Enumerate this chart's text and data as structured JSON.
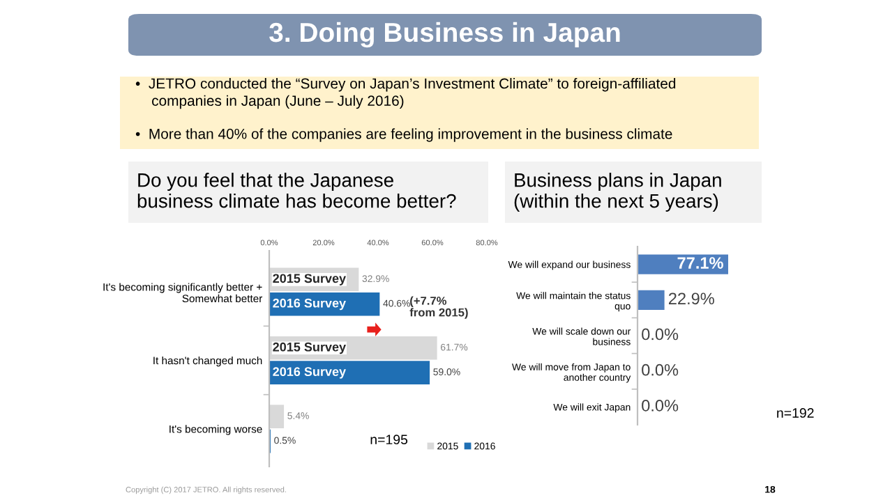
{
  "chart_data": [
    {
      "type": "other",
      "title": "3. Doing Business in Japan",
      "annotations": [
        "•  JETRO conducted the “Survey on Japan’s Investment Climate” to foreign-affiliated\n    companies in Japan (June – July 2016)",
        "•  More than 40% of the companies are feeling improvement in the business climate",
        "Copyright (C) 2017 JETRO. All rights reserved.",
        "18"
      ]
    },
    {
      "type": "bar",
      "orientation": "horizontal",
      "title": "Do you feel that the Japanese\nbusiness climate has become better?",
      "categories": [
        "It's becoming significantly better +\nSomewhat better",
        "It hasn't changed much",
        "It's becoming worse"
      ],
      "series": [
        {
          "name": "2015",
          "color": "#d9d9d9",
          "values": [
            32.9,
            61.7,
            5.4
          ],
          "value_labels": [
            "32.9%",
            "61.7%",
            "5.4%"
          ]
        },
        {
          "name": "2016",
          "color": "#1f6fb4",
          "values": [
            40.6,
            59.0,
            0.5
          ],
          "value_labels": [
            "40.6%",
            "59.0%",
            "0.5%"
          ]
        }
      ],
      "xlim": [
        0,
        80
      ],
      "xticks": [
        {
          "value": 0,
          "label": "0.0%"
        },
        {
          "value": 20,
          "label": "20.0%"
        },
        {
          "value": 40,
          "label": "40.0%"
        },
        {
          "value": 60,
          "label": "60.0%"
        },
        {
          "value": 80,
          "label": "80.0%"
        }
      ],
      "legend": "bottom right",
      "annotations": [
        "2015 Survey",
        "2016 Survey",
        "2015 Survey",
        "2016 Survey",
        "(+7.7%\nfrom 2015)",
        "n=195"
      ]
    },
    {
      "type": "bar",
      "orientation": "horizontal",
      "title": "Business plans in Japan\n(within the next 5 years)",
      "categories": [
        "We will expand our business",
        "We will maintain the status\nquo",
        "We will scale down our\nbusiness",
        "We will move from Japan to\nanother country",
        "We will exit Japan"
      ],
      "series": [
        {
          "color": "#4f7fbf",
          "values": [
            77.1,
            22.9,
            0.0,
            0.0,
            0.0
          ],
          "value_labels": [
            "77.1%",
            "22.9%",
            "0.0%",
            "0.0%",
            "0.0%"
          ]
        }
      ],
      "tick_labels": "y",
      "annotations": [
        "n=192"
      ]
    }
  ]
}
